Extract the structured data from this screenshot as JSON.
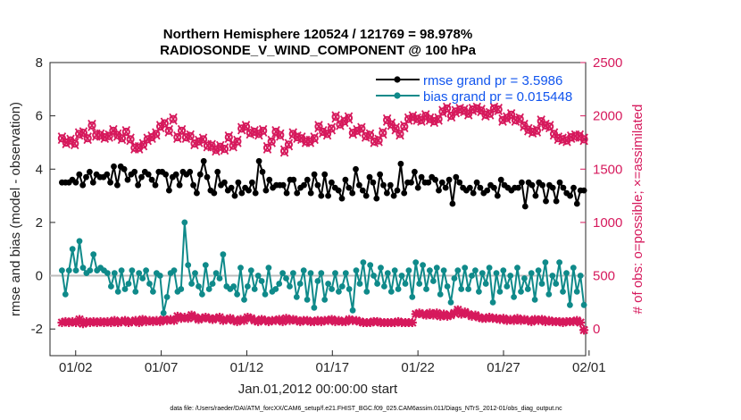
{
  "chart_data": {
    "type": "line",
    "title_line1": "Northern Hemisphere 120524 / 121769 = 98.978%",
    "title_line2": "RADIOSONDE_V_WIND_COMPONENT @ 100 hPa",
    "xlabel": "Jan.01,2012 00:00:00 start",
    "ylabel_left": "rmse and bias (model - observation)",
    "ylabel_right": "# of obs: o=possible; ×=assimilated",
    "footnote": "data file: /Users/raeder/DAI/ATM_forcXX/CAM6_setup/f.e21.FHIST_BGC.f09_025.CAM6assim.011/Diags_NTrS_2012-01/obs_diag_output.nc",
    "xlim": [
      0.5,
      31.8
    ],
    "ylim_left": [
      -3,
      8
    ],
    "ylim_right": [
      -250,
      2500
    ],
    "x_ticks": [
      {
        "x": 2,
        "label": "01/02"
      },
      {
        "x": 7,
        "label": "01/07"
      },
      {
        "x": 12,
        "label": "01/12"
      },
      {
        "x": 17,
        "label": "01/17"
      },
      {
        "x": 22,
        "label": "01/22"
      },
      {
        "x": 27,
        "label": "01/27"
      },
      {
        "x": 32,
        "label": "02/01"
      }
    ],
    "y_ticks_left": [
      "-2",
      "0",
      "2",
      "4",
      "6",
      "8"
    ],
    "y_ticks_right": [
      "0",
      "500",
      "1000",
      "1500",
      "2000",
      "2500"
    ],
    "zero_line": 0,
    "series": [
      {
        "name": "rmse grand pr = 3.5986",
        "axis": "left",
        "color": "#000000",
        "marker": "circle",
        "values": [
          3.5,
          3.5,
          3.5,
          3.6,
          3.5,
          3.8,
          3.4,
          3.7,
          3.9,
          3.5,
          3.8,
          3.7,
          3.7,
          3.8,
          3.5,
          4.1,
          3.4,
          4.1,
          4.0,
          3.6,
          3.8,
          3.9,
          3.4,
          3.7,
          3.9,
          3.8,
          3.6,
          3.4,
          3.9,
          3.9,
          3.8,
          3.2,
          3.7,
          3.8,
          3.4,
          3.9,
          3.8,
          3.9,
          3.4,
          3.1,
          3.8,
          4.3,
          3.7,
          3.2,
          3.1,
          3.9,
          3.4,
          3.5,
          3.2,
          3.3,
          3.0,
          3.5,
          3.1,
          3.3,
          3.2,
          3.5,
          3.1,
          4.3,
          3.9,
          3.2,
          3.6,
          3.3,
          3.4,
          3.4,
          3.4,
          3.1,
          3.6,
          3.6,
          3.1,
          3.3,
          3.4,
          3.6,
          3.1,
          3.8,
          3.4,
          3.0,
          3.8,
          3.0,
          3.5,
          3.3,
          3.2,
          2.9,
          3.6,
          3.3,
          3.1,
          4.0,
          3.4,
          3.2,
          3.0,
          3.7,
          3.5,
          2.9,
          3.8,
          3.4,
          3.1,
          3.4,
          3.0,
          3.2,
          4.2,
          3.1,
          3.5,
          3.5,
          3.9,
          3.3,
          3.7,
          3.5,
          3.5,
          3.7,
          3.6,
          3.2,
          3.5,
          3.3,
          3.6,
          2.7,
          3.7,
          3.5,
          3.3,
          3.2,
          3.3,
          3.1,
          3.5,
          3.3,
          3.1,
          3.2,
          3.4,
          3.3,
          3.0,
          3.6,
          3.4,
          3.3,
          3.2,
          3.3,
          3.3,
          3.5,
          2.6,
          3.5,
          3.4,
          3.0,
          3.5,
          3.4,
          2.8,
          3.4,
          3.3,
          2.8,
          3.5,
          3.3,
          3.1,
          3.0,
          3.3,
          2.7,
          3.2,
          3.2
        ]
      },
      {
        "name": "bias grand pr = 0.015448",
        "axis": "left",
        "color": "#0f8a8a",
        "marker": "circle",
        "values": [
          0.2,
          -0.7,
          0.2,
          1.0,
          0.2,
          1.3,
          0.3,
          0.1,
          0.2,
          0.8,
          0.2,
          0.3,
          0.2,
          0.1,
          -0.4,
          0.1,
          -0.6,
          0.2,
          -0.5,
          -0.3,
          0.2,
          -0.6,
          0.1,
          -0.1,
          0.2,
          -0.3,
          -0.6,
          0.1,
          0.0,
          -1.4,
          -0.8,
          0.1,
          0.2,
          -0.6,
          -0.5,
          2.0,
          0.4,
          -0.3,
          0.1,
          -0.4,
          -0.7,
          0.4,
          -0.5,
          -0.3,
          0.1,
          -0.1,
          0.8,
          -0.4,
          -0.5,
          -0.4,
          -0.7,
          0.3,
          -0.9,
          -0.4,
          0.2,
          -0.5,
          0.0,
          -0.2,
          -0.7,
          0.3,
          -0.6,
          -0.5,
          -0.3,
          0.1,
          -0.1,
          -0.4,
          0.1,
          -0.8,
          -0.3,
          0.2,
          -0.9,
          0.1,
          -1.2,
          -0.2,
          0.1,
          -0.9,
          -0.3,
          -0.5,
          0.1,
          -0.6,
          -0.4,
          0.1,
          -0.5,
          -1.3,
          0.2,
          -0.3,
          0.5,
          -0.6,
          0.4,
          0.0,
          -0.3,
          0.3,
          -0.4,
          0.1,
          -0.6,
          0.2,
          -0.5,
          0.0,
          -0.3,
          0.2,
          -0.8,
          0.5,
          -0.3,
          0.4,
          -0.5,
          0.2,
          -0.2,
          0.3,
          -0.7,
          0.2,
          -0.4,
          -1.0,
          -0.1,
          0.2,
          -0.5,
          0.3,
          -0.5,
          0.0,
          0.2,
          -0.6,
          0.1,
          -0.3,
          0.3,
          -1.0,
          0.1,
          -0.6,
          0.2,
          -0.4,
          0.0,
          -0.8,
          0.3,
          -0.6,
          -0.1,
          -0.5,
          0.1,
          -0.9,
          0.2,
          -0.3,
          0.5,
          -0.7,
          0.0,
          -0.3,
          0.5,
          -0.6,
          0.1,
          -1.1,
          0.3,
          -0.6,
          0.0,
          -1.1
        ]
      },
      {
        "name": "possible (o)",
        "axis": "right",
        "color": "#d6195c",
        "marker": "o-cluster",
        "values": [
          1790,
          1750,
          1770,
          1740,
          1830,
          1840,
          1790,
          1910,
          1820,
          1820,
          1800,
          1810,
          1860,
          1820,
          1790,
          1850,
          1780,
          1700,
          1700,
          1730,
          1780,
          1800,
          1830,
          1900,
          1930,
          1860,
          1970,
          1800,
          1860,
          1800,
          1810,
          1740,
          1760,
          1780,
          1720,
          1720,
          1680,
          1710,
          1690,
          1800,
          1720,
          1760,
          1880,
          1900,
          1840,
          1850,
          1830,
          1860,
          1700,
          1760,
          1850,
          1820,
          1670,
          1730,
          1830,
          1800,
          1790,
          1760,
          1760,
          1790,
          1900,
          1850,
          1830,
          1880,
          1990,
          1920,
          1950,
          1980,
          1840,
          1860,
          1880,
          1810,
          1820,
          1760,
          1770,
          1840,
          1960,
          1920,
          1880,
          1830,
          1900,
          1970,
          1990,
          1970,
          1960,
          2000,
          1970,
          1950,
          1970,
          2040,
          2070,
          2000,
          2040,
          2060,
          2050,
          2020,
          2060,
          2070,
          2050,
          2010,
          2020,
          2070,
          2060,
          1960,
          1980,
          2010,
          1960,
          1970,
          1910,
          1870,
          1850,
          1860,
          1950,
          1910,
          1900,
          1830,
          1790,
          1780,
          1770,
          1800,
          1810,
          1810,
          1780
        ]
      },
      {
        "name": "assimilated (×)",
        "axis": "right",
        "color": "#d6195c",
        "marker": "x-cluster",
        "values": [
          60,
          70,
          60,
          70,
          60,
          90,
          50,
          70,
          60,
          70,
          60,
          70,
          60,
          70,
          60,
          80,
          60,
          70,
          80,
          60,
          70,
          80,
          60,
          90,
          70,
          80,
          70,
          80,
          70,
          90,
          80,
          90,
          80,
          120,
          100,
          110,
          100,
          130,
          110,
          90,
          100,
          110,
          100,
          90,
          100,
          110,
          80,
          90,
          100,
          80,
          70,
          90,
          80,
          110,
          100,
          80,
          70,
          90,
          80,
          70,
          80,
          80,
          90,
          70,
          100,
          80,
          90,
          80,
          70,
          80,
          80,
          70,
          70,
          80,
          70,
          80,
          80,
          90,
          70,
          80,
          70,
          70,
          90,
          80,
          80,
          70,
          60,
          60,
          60,
          70,
          70,
          60,
          60,
          60,
          60,
          60,
          70,
          60,
          60,
          60,
          60,
          140,
          150,
          140,
          130,
          150,
          130,
          150,
          120,
          140,
          120,
          130,
          150,
          180,
          140,
          160,
          140,
          120,
          130,
          110,
          100,
          100,
          110,
          100,
          100,
          90,
          100,
          80,
          90,
          80,
          100,
          80,
          90,
          80,
          70,
          90,
          80,
          90,
          70,
          80,
          70,
          70,
          70,
          60,
          70,
          70,
          70,
          80,
          60,
          -10
        ]
      }
    ]
  }
}
